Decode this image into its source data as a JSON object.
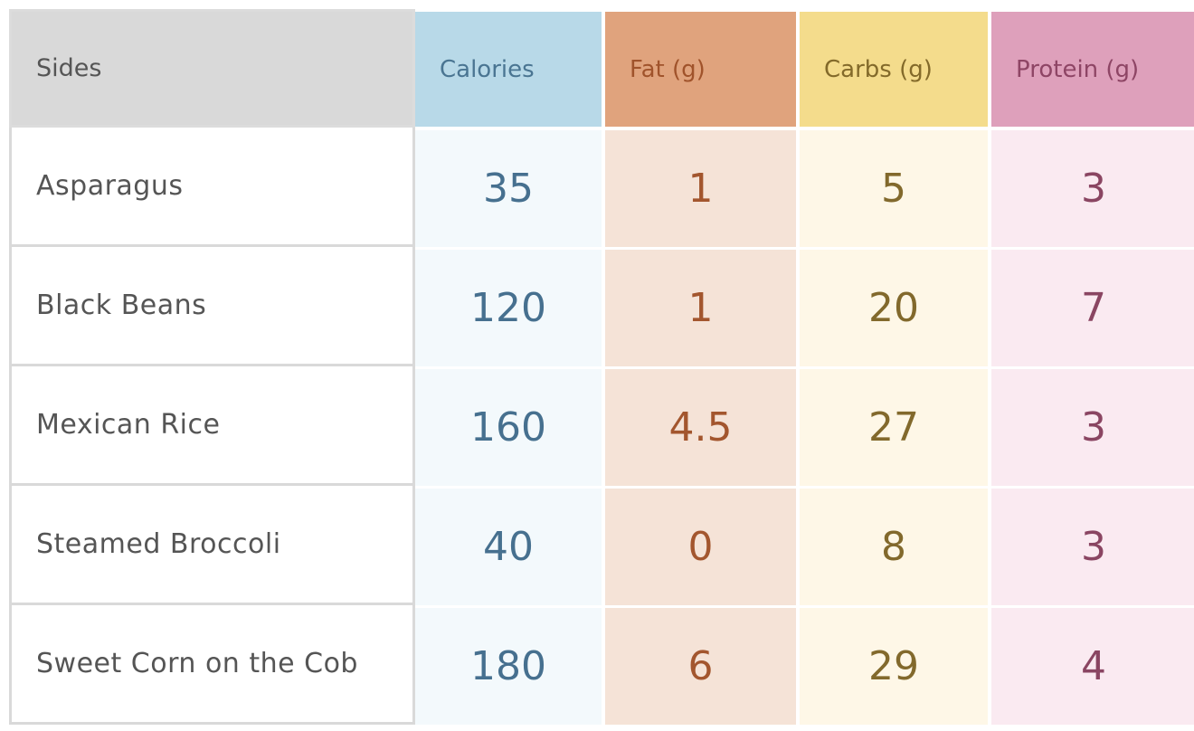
{
  "headers": {
    "sides": "Sides",
    "calories": "Calories",
    "fat": "Fat (g)",
    "carbs": "Carbs (g)",
    "protein": "Protein (g)"
  },
  "rows": [
    {
      "side": "Asparagus",
      "calories": "35",
      "fat": "1",
      "carbs": "5",
      "protein": "3"
    },
    {
      "side": "Black Beans",
      "calories": "120",
      "fat": "1",
      "carbs": "20",
      "protein": "7"
    },
    {
      "side": "Mexican Rice",
      "calories": "160",
      "fat": "4.5",
      "carbs": "27",
      "protein": "3"
    },
    {
      "side": "Steamed Broccoli",
      "calories": "40",
      "fat": "0",
      "carbs": "8",
      "protein": "3"
    },
    {
      "side": "Sweet Corn on the Cob",
      "calories": "180",
      "fat": "6",
      "carbs": "29",
      "protein": "4"
    }
  ],
  "colors": {
    "calories_header": "#b8d9e8",
    "fat_header": "#e0a37d",
    "carbs_header": "#f4dc8c",
    "protein_header": "#dea0bb",
    "sides_header": "#d9d9d9"
  }
}
